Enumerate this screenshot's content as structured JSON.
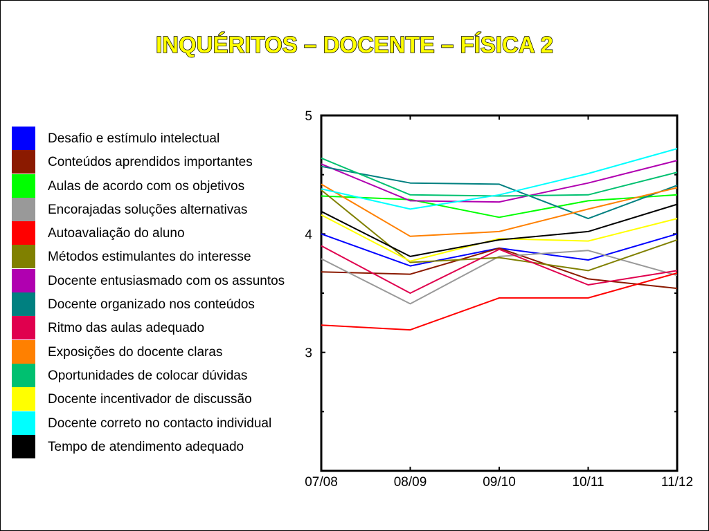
{
  "chart_data": {
    "type": "line",
    "title": "INQUÉRITOS – DOCENTE – FÍSICA 2",
    "xlabel": "",
    "ylabel": "",
    "categories": [
      "07/08",
      "08/09",
      "09/10",
      "10/11",
      "11/12"
    ],
    "ylim": [
      2,
      5
    ],
    "yticks": [
      "3",
      "4",
      "5"
    ],
    "grid": false,
    "legend_position": "left",
    "series": [
      {
        "name": "Desafio e estímulo intelectual",
        "color": "#0000ff",
        "values": [
          4.0,
          3.73,
          3.88,
          3.78,
          4.0
        ]
      },
      {
        "name": "Conteúdos aprendidos importantes",
        "color": "#8b1a00",
        "values": [
          3.68,
          3.66,
          3.88,
          3.62,
          3.54
        ]
      },
      {
        "name": "Aulas de acordo com os objetivos",
        "color": "#00ff00",
        "values": [
          4.32,
          4.29,
          4.14,
          4.28,
          4.33
        ]
      },
      {
        "name": "Encorajadas soluções alternativas",
        "color": "#999999",
        "values": [
          3.79,
          3.41,
          3.81,
          3.86,
          3.65
        ]
      },
      {
        "name": "Autoavaliação do aluno",
        "color": "#ff0000",
        "values": [
          3.23,
          3.19,
          3.46,
          3.46,
          3.67
        ]
      },
      {
        "name": "Métodos estimulantes do interesse",
        "color": "#808000",
        "values": [
          4.37,
          3.76,
          3.8,
          3.69,
          3.95
        ]
      },
      {
        "name": "Docente entusiasmado com os assuntos",
        "color": "#b000b0",
        "values": [
          4.59,
          4.28,
          4.27,
          4.43,
          4.62
        ]
      },
      {
        "name": "Docente organizado nos conteúdos",
        "color": "#008080",
        "values": [
          4.57,
          4.43,
          4.42,
          4.13,
          4.41
        ]
      },
      {
        "name": "Ritmo das aulas adequado",
        "color": "#e0004e",
        "values": [
          3.9,
          3.5,
          3.87,
          3.57,
          3.69
        ]
      },
      {
        "name": "Exposições do docente claras",
        "color": "#ff8000",
        "values": [
          4.42,
          3.98,
          4.02,
          4.21,
          4.39
        ]
      },
      {
        "name": "Oportunidades de colocar dúvidas",
        "color": "#00c070",
        "values": [
          4.64,
          4.33,
          4.32,
          4.33,
          4.52
        ]
      },
      {
        "name": "Docente incentivador de discussão",
        "color": "#ffff00",
        "values": [
          4.16,
          3.77,
          3.96,
          3.94,
          4.13
        ]
      },
      {
        "name": "Docente correto no contacto individual",
        "color": "#00ffff",
        "values": [
          4.38,
          4.21,
          4.33,
          4.51,
          4.72
        ]
      },
      {
        "name": "Tempo de atendimento adequado",
        "color": "#000000",
        "values": [
          4.19,
          3.81,
          3.95,
          4.02,
          4.25
        ]
      }
    ]
  }
}
